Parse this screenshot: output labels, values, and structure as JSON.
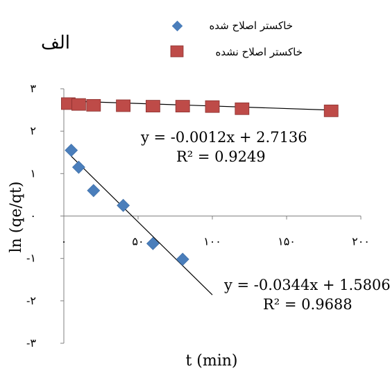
{
  "chart_data": {
    "type": "scatter",
    "panel_label": "الف",
    "xlabel": "t (min)",
    "ylabel": "ln (qe/qt)",
    "xlim": [
      0,
      200
    ],
    "ylim": [
      -3,
      3
    ],
    "x_ticks": [
      {
        "value": 0,
        "label": "۰"
      },
      {
        "value": 50,
        "label": "۵۰"
      },
      {
        "value": 100,
        "label": "۱۰۰"
      },
      {
        "value": 150,
        "label": "۱۵۰"
      },
      {
        "value": 200,
        "label": "۲۰۰"
      }
    ],
    "y_ticks": [
      {
        "value": 3,
        "label": "۳"
      },
      {
        "value": 2,
        "label": "۲"
      },
      {
        "value": 1,
        "label": "۱"
      },
      {
        "value": 0,
        "label": "۰"
      },
      {
        "value": -1,
        "label": "-۱"
      },
      {
        "value": -2,
        "label": "-۲"
      },
      {
        "value": -3,
        "label": "-۳"
      }
    ],
    "grid": false,
    "legend_position": "top-right",
    "series": [
      {
        "name": "خاکستر اصلاح شده",
        "marker": "diamond",
        "color": "#4a7ebb",
        "x": [
          5,
          10,
          20,
          40,
          60,
          80
        ],
        "y": [
          1.55,
          1.15,
          0.6,
          0.25,
          -0.65,
          -1.02
        ],
        "trendline": {
          "slope": -0.0344,
          "intercept": 1.5806,
          "x_range": [
            5,
            100
          ],
          "equation": "y = -0.0344x + 1.5806",
          "r2": "R² = 0.9688"
        }
      },
      {
        "name": "خاکستر اصلاح نشده",
        "marker": "square",
        "color": "#be4b48",
        "x": [
          3,
          10,
          20,
          40,
          60,
          80,
          100,
          120,
          180
        ],
        "y": [
          2.65,
          2.63,
          2.61,
          2.6,
          2.59,
          2.59,
          2.58,
          2.53,
          2.48
        ],
        "trendline": {
          "slope": -0.0012,
          "intercept": 2.7136,
          "x_range": [
            3,
            180
          ],
          "equation": "y = -0.0012x + 2.7136",
          "r2": "R² = 0.9249"
        }
      }
    ]
  }
}
